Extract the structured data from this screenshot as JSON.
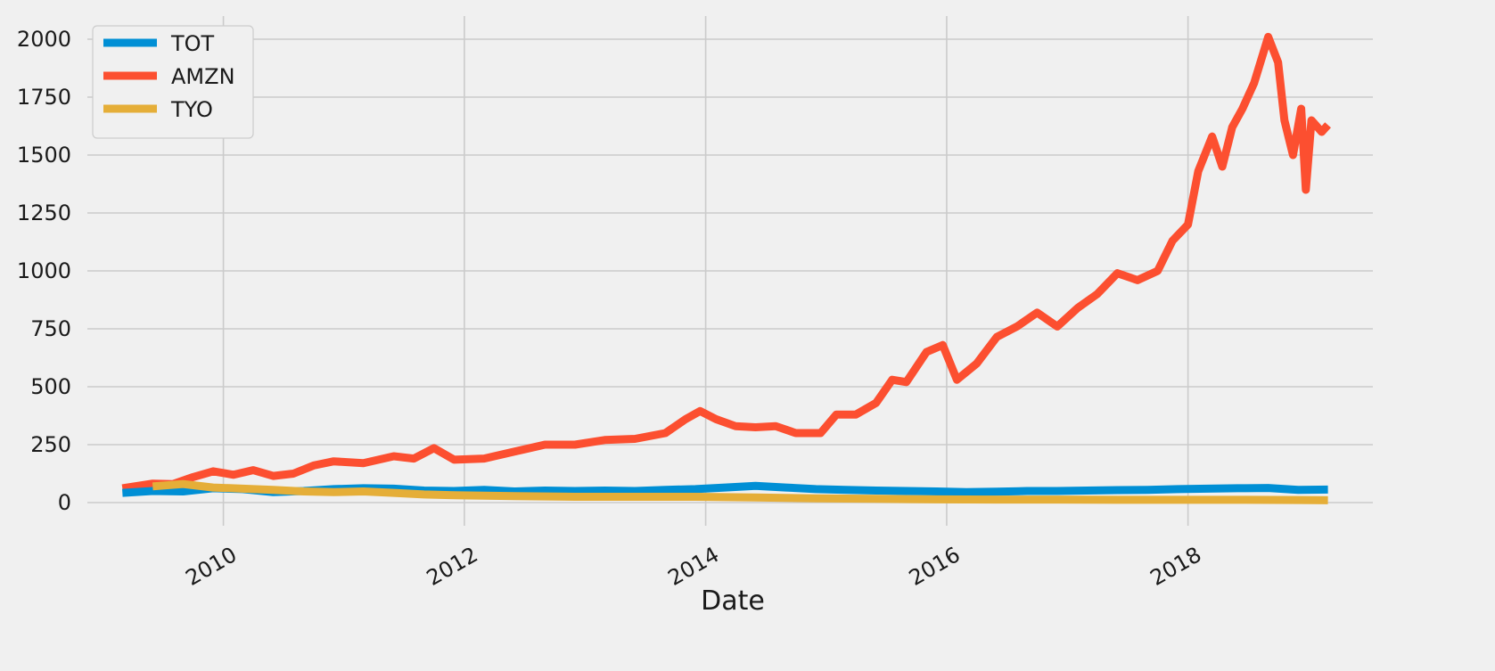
{
  "chart_data": {
    "type": "line",
    "xlabel": "Date",
    "ylabel": "",
    "title": "",
    "xlim": [
      "2008-11-15",
      "2019-07-15"
    ],
    "ylim": [
      -100,
      2100
    ],
    "yticks": [
      0,
      250,
      500,
      750,
      1000,
      1250,
      1500,
      1750,
      2000
    ],
    "xticks": [
      "2010-01-01",
      "2012-01-01",
      "2014-01-01",
      "2016-01-01",
      "2018-01-01"
    ],
    "xtick_labels": [
      "2010",
      "2012",
      "2014",
      "2016",
      "2018"
    ],
    "grid": true,
    "legend": "top-left",
    "series": [
      {
        "name": "TOT",
        "color": "#008fd5",
        "points": [
          [
            "2009-03-01",
            42
          ],
          [
            "2009-06-01",
            50
          ],
          [
            "2009-09-01",
            48
          ],
          [
            "2009-12-01",
            62
          ],
          [
            "2010-03-01",
            58
          ],
          [
            "2010-06-01",
            45
          ],
          [
            "2010-09-01",
            50
          ],
          [
            "2010-12-01",
            58
          ],
          [
            "2011-03-01",
            62
          ],
          [
            "2011-06-01",
            60
          ],
          [
            "2011-09-01",
            52
          ],
          [
            "2011-12-01",
            50
          ],
          [
            "2012-03-01",
            55
          ],
          [
            "2012-06-01",
            48
          ],
          [
            "2012-09-01",
            52
          ],
          [
            "2012-12-01",
            50
          ],
          [
            "2013-03-01",
            52
          ],
          [
            "2013-06-01",
            50
          ],
          [
            "2013-09-01",
            55
          ],
          [
            "2013-12-01",
            58
          ],
          [
            "2014-03-01",
            65
          ],
          [
            "2014-06-01",
            72
          ],
          [
            "2014-09-01",
            65
          ],
          [
            "2014-12-01",
            58
          ],
          [
            "2015-03-01",
            55
          ],
          [
            "2015-06-01",
            52
          ],
          [
            "2015-09-01",
            50
          ],
          [
            "2015-12-01",
            48
          ],
          [
            "2016-03-01",
            45
          ],
          [
            "2016-06-01",
            47
          ],
          [
            "2016-09-01",
            50
          ],
          [
            "2016-12-01",
            50
          ],
          [
            "2017-03-01",
            52
          ],
          [
            "2017-06-01",
            54
          ],
          [
            "2017-09-01",
            55
          ],
          [
            "2017-12-01",
            58
          ],
          [
            "2018-03-01",
            60
          ],
          [
            "2018-06-01",
            62
          ],
          [
            "2018-09-01",
            63
          ],
          [
            "2018-12-01",
            55
          ],
          [
            "2019-03-01",
            56
          ]
        ]
      },
      {
        "name": "AMZN",
        "color": "#fc4f30",
        "points": [
          [
            "2009-03-01",
            62
          ],
          [
            "2009-06-01",
            82
          ],
          [
            "2009-08-01",
            80
          ],
          [
            "2009-10-01",
            110
          ],
          [
            "2009-12-01",
            135
          ],
          [
            "2010-02-01",
            120
          ],
          [
            "2010-04-01",
            140
          ],
          [
            "2010-06-01",
            115
          ],
          [
            "2010-08-01",
            125
          ],
          [
            "2010-10-01",
            160
          ],
          [
            "2010-12-01",
            178
          ],
          [
            "2011-03-01",
            170
          ],
          [
            "2011-06-01",
            200
          ],
          [
            "2011-08-01",
            190
          ],
          [
            "2011-10-01",
            235
          ],
          [
            "2011-12-01",
            185
          ],
          [
            "2012-03-01",
            190
          ],
          [
            "2012-06-01",
            220
          ],
          [
            "2012-09-01",
            250
          ],
          [
            "2012-12-01",
            250
          ],
          [
            "2013-03-01",
            270
          ],
          [
            "2013-06-01",
            275
          ],
          [
            "2013-09-01",
            300
          ],
          [
            "2013-11-01",
            360
          ],
          [
            "2013-12-15",
            395
          ],
          [
            "2014-02-01",
            360
          ],
          [
            "2014-04-01",
            330
          ],
          [
            "2014-06-01",
            325
          ],
          [
            "2014-08-01",
            330
          ],
          [
            "2014-10-01",
            300
          ],
          [
            "2014-12-15",
            300
          ],
          [
            "2015-02-01",
            380
          ],
          [
            "2015-04-01",
            380
          ],
          [
            "2015-06-01",
            430
          ],
          [
            "2015-07-20",
            530
          ],
          [
            "2015-09-01",
            520
          ],
          [
            "2015-11-01",
            650
          ],
          [
            "2015-12-20",
            680
          ],
          [
            "2016-02-01",
            530
          ],
          [
            "2016-04-01",
            600
          ],
          [
            "2016-06-01",
            715
          ],
          [
            "2016-08-01",
            760
          ],
          [
            "2016-10-01",
            820
          ],
          [
            "2016-12-01",
            760
          ],
          [
            "2017-02-01",
            840
          ],
          [
            "2017-04-01",
            900
          ],
          [
            "2017-06-01",
            990
          ],
          [
            "2017-08-01",
            960
          ],
          [
            "2017-10-01",
            1000
          ],
          [
            "2017-11-15",
            1130
          ],
          [
            "2018-01-01",
            1200
          ],
          [
            "2018-02-01",
            1430
          ],
          [
            "2018-03-15",
            1580
          ],
          [
            "2018-04-15",
            1450
          ],
          [
            "2018-05-15",
            1620
          ],
          [
            "2018-06-15",
            1700
          ],
          [
            "2018-07-20",
            1810
          ],
          [
            "2018-09-01",
            2010
          ],
          [
            "2018-10-01",
            1900
          ],
          [
            "2018-10-20",
            1650
          ],
          [
            "2018-11-15",
            1500
          ],
          [
            "2018-12-10",
            1700
          ],
          [
            "2018-12-24",
            1350
          ],
          [
            "2019-01-10",
            1650
          ],
          [
            "2019-02-10",
            1600
          ],
          [
            "2019-03-01",
            1630
          ]
        ]
      },
      {
        "name": "TYO",
        "color": "#e5ae38",
        "points": [
          [
            "2009-06-01",
            70
          ],
          [
            "2009-09-01",
            80
          ],
          [
            "2009-12-01",
            65
          ],
          [
            "2010-03-01",
            60
          ],
          [
            "2010-06-01",
            55
          ],
          [
            "2010-09-01",
            48
          ],
          [
            "2010-12-01",
            45
          ],
          [
            "2011-03-01",
            48
          ],
          [
            "2011-06-01",
            42
          ],
          [
            "2011-09-01",
            35
          ],
          [
            "2011-12-01",
            32
          ],
          [
            "2012-06-01",
            28
          ],
          [
            "2012-12-01",
            25
          ],
          [
            "2013-06-01",
            25
          ],
          [
            "2013-12-01",
            25
          ],
          [
            "2014-06-01",
            22
          ],
          [
            "2014-12-01",
            18
          ],
          [
            "2015-06-01",
            16
          ],
          [
            "2015-12-01",
            14
          ],
          [
            "2016-06-01",
            13
          ],
          [
            "2016-12-01",
            13
          ],
          [
            "2017-06-01",
            12
          ],
          [
            "2017-12-01",
            12
          ],
          [
            "2018-06-01",
            12
          ],
          [
            "2018-12-01",
            11
          ],
          [
            "2019-03-01",
            10
          ]
        ]
      }
    ]
  }
}
